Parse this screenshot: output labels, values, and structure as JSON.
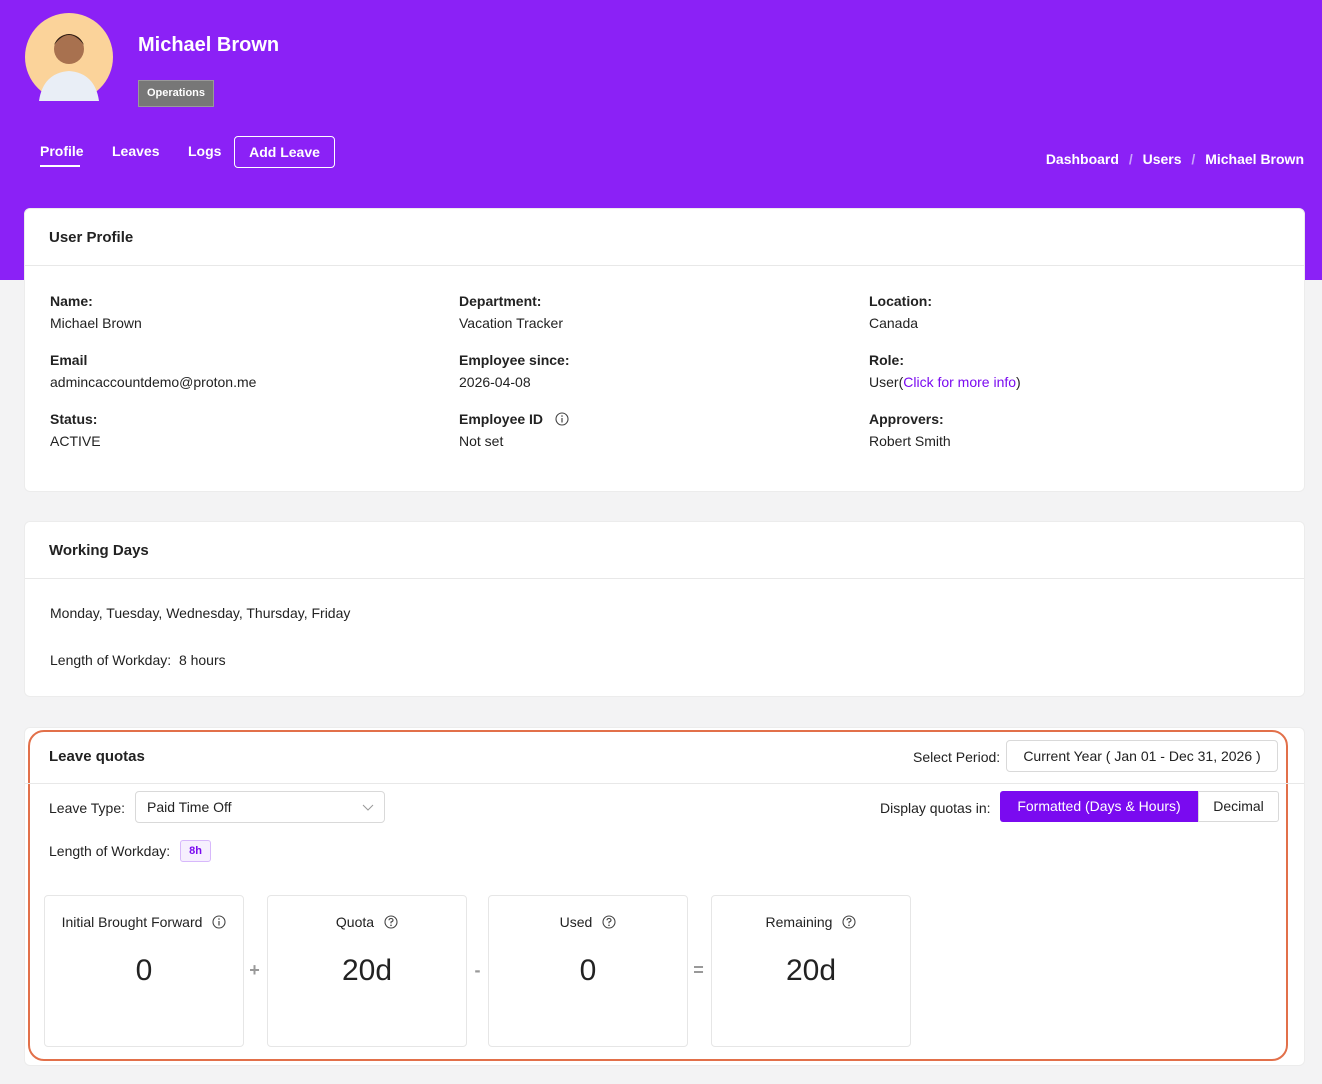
{
  "header": {
    "name": "Michael Brown",
    "badge": "Operations",
    "tabs": [
      "Profile",
      "Leaves",
      "Logs"
    ],
    "add_leave": "Add Leave",
    "breadcrumb": [
      "Dashboard",
      "Users",
      "Michael Brown"
    ],
    "separator": "/"
  },
  "profile": {
    "title": "User Profile",
    "fields": [
      {
        "label": "Name:",
        "value": "Michael Brown"
      },
      {
        "label": "Department:",
        "value": "Vacation Tracker"
      },
      {
        "label": "Location:",
        "value": "Canada"
      },
      {
        "label": "Email",
        "value": "admincaccountdemo@proton.me"
      },
      {
        "label": "Employee since:",
        "value": "2026-04-08"
      },
      {
        "label": "Role:",
        "value": "User",
        "open": "(",
        "link": "Click for more info",
        "close": ")"
      },
      {
        "label": "Status:",
        "value": "ACTIVE"
      },
      {
        "label": "Employee ID",
        "value": "Not set",
        "info": true
      },
      {
        "label": "Approvers:",
        "value": "Robert Smith"
      }
    ]
  },
  "working_days": {
    "title": "Working Days",
    "days": "Monday, Tuesday, Wednesday, Thursday, Friday",
    "workday_label": "Length of Workday:",
    "workday_value": "8 hours"
  },
  "leave_quotas": {
    "title": "Leave quotas",
    "period_label": "Select Period:",
    "period": "Current Year ( Jan 01 - Dec 31, 2026 )",
    "leave_type_label": "Leave Type:",
    "leave_type": "Paid Time Off",
    "display_label": "Display quotas in:",
    "display_options": [
      "Formatted (Days & Hours)",
      "Decimal"
    ],
    "workday_label": "Length of Workday:",
    "workday_badge": "8h",
    "cards": [
      {
        "label": "Initial Brought Forward",
        "value": "0",
        "icon": "info"
      },
      {
        "label": "Quota",
        "value": "20d",
        "icon": "help"
      },
      {
        "label": "Used",
        "value": "0",
        "icon": "help"
      },
      {
        "label": "Remaining",
        "value": "20d",
        "icon": "help"
      }
    ],
    "operators": [
      "+",
      "-",
      "="
    ]
  }
}
